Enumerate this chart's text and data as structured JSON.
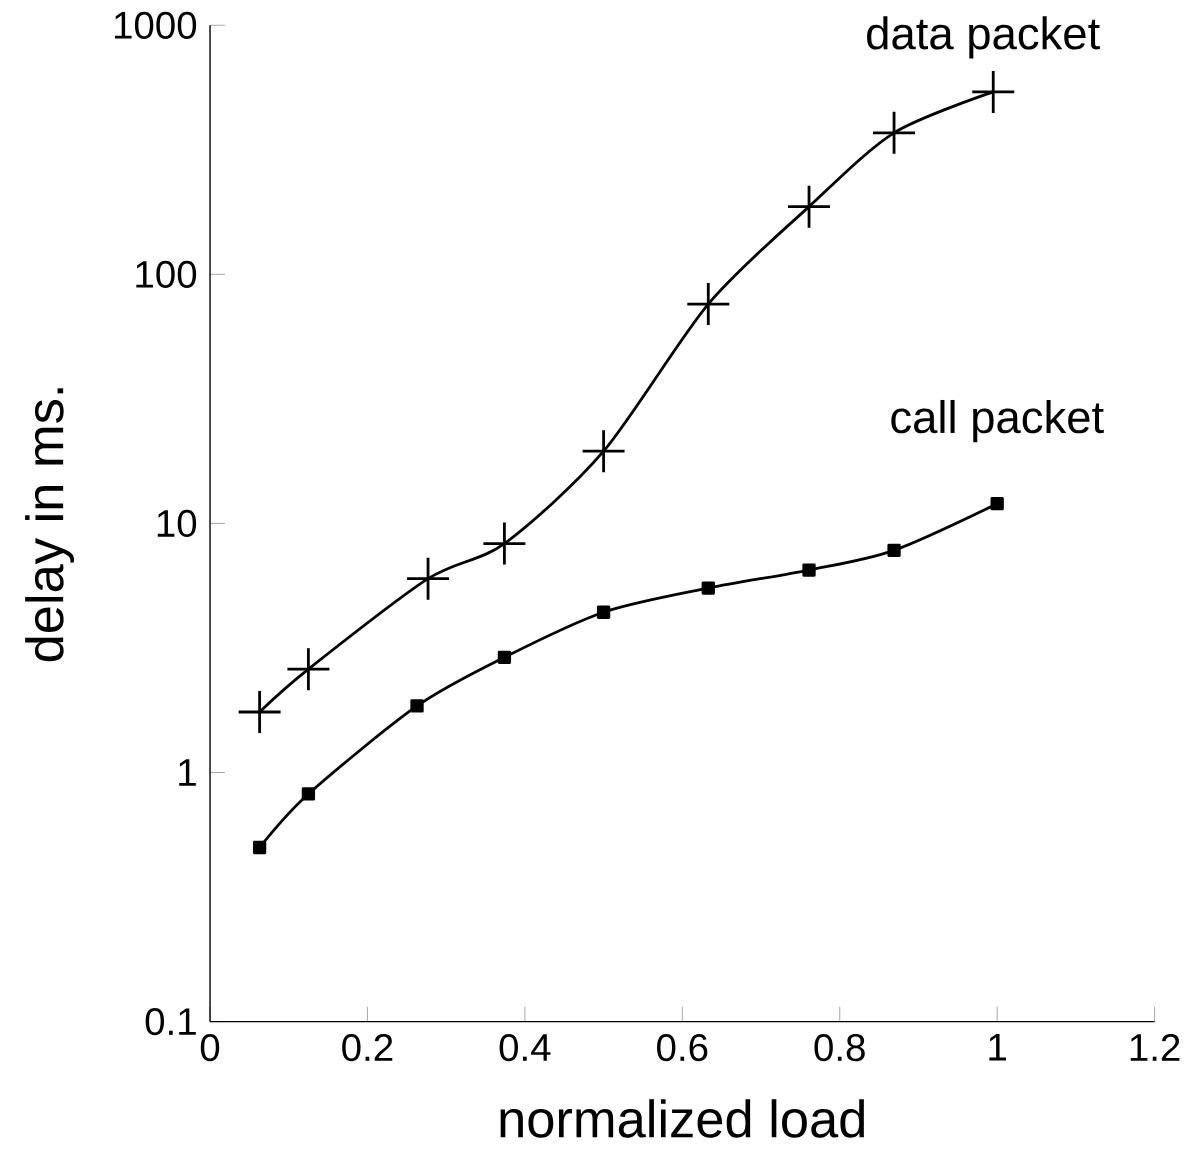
{
  "chart_data": {
    "type": "line",
    "xlabel": "normalized load",
    "ylabel": "delay in ms.",
    "xlim": [
      0,
      1.2
    ],
    "xticks": [
      0,
      0.2,
      0.4,
      0.6,
      0.8,
      1,
      1.2
    ],
    "ylim": [
      0.1,
      1000
    ],
    "yticks": [
      0.1,
      1,
      10,
      100,
      1000
    ],
    "log": "y",
    "line_style": "solid",
    "series": [
      {
        "name": "data packet",
        "color": "#000000",
        "marker": "cross",
        "x": [
          0.063,
          0.125,
          0.277,
          0.374,
          0.5,
          0.633,
          0.761,
          0.869,
          0.995
        ],
        "values": [
          1.75,
          2.6,
          6,
          8.3,
          19.5,
          76,
          187,
          370,
          540
        ]
      },
      {
        "name": "call packet",
        "color": "#000000",
        "marker": "square",
        "x": [
          0.063,
          0.125,
          0.263,
          0.374,
          0.5,
          0.633,
          0.761,
          0.869,
          1.0
        ],
        "values": [
          0.5,
          0.82,
          1.85,
          2.9,
          4.4,
          5.5,
          6.5,
          7.8,
          12
        ]
      }
    ]
  }
}
